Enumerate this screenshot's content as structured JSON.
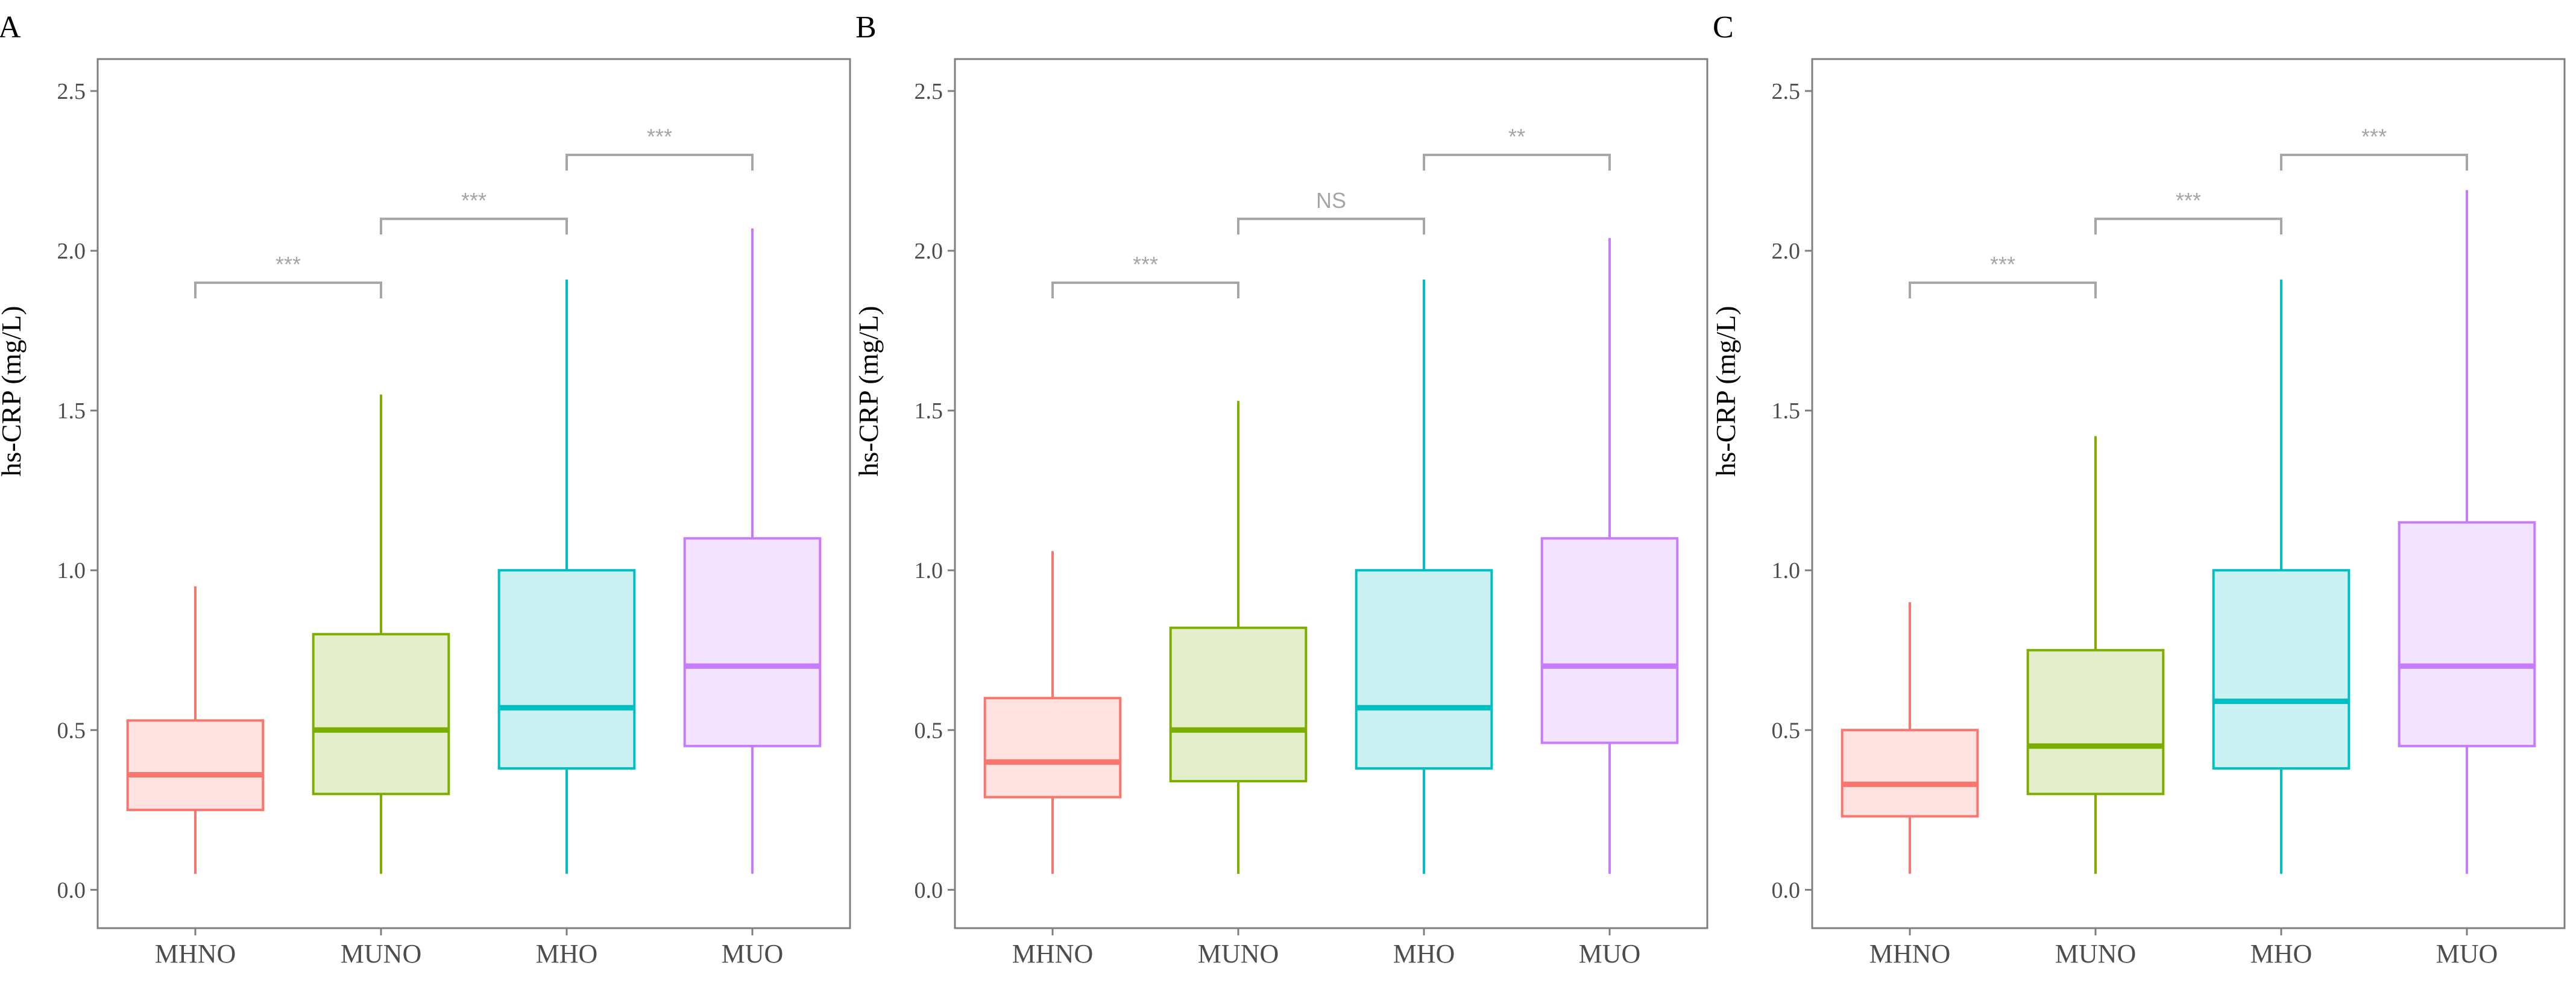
{
  "chart_data": [
    {
      "panel": "A",
      "type": "box",
      "ylabel": "hs-CRP (mg/L)",
      "ylim": [
        -0.12,
        2.6
      ],
      "yticks": [
        "0.0",
        "0.5",
        "1.0",
        "1.5",
        "2.0",
        "2.5"
      ],
      "ytick_values": [
        0,
        0.5,
        1.0,
        1.5,
        2.0,
        2.5
      ],
      "categories": [
        "MHNO",
        "MUNO",
        "MHO",
        "MUO"
      ],
      "boxes": [
        {
          "min": 0.05,
          "q1": 0.25,
          "median": 0.36,
          "q3": 0.53,
          "max": 0.95
        },
        {
          "min": 0.05,
          "q1": 0.3,
          "median": 0.5,
          "q3": 0.8,
          "max": 1.55
        },
        {
          "min": 0.05,
          "q1": 0.38,
          "median": 0.57,
          "q3": 1.0,
          "max": 1.91
        },
        {
          "min": 0.05,
          "q1": 0.45,
          "median": 0.7,
          "q3": 1.1,
          "max": 2.07
        }
      ],
      "comparisons": [
        {
          "from": 0,
          "to": 1,
          "y": 1.9,
          "label": "***"
        },
        {
          "from": 1,
          "to": 2,
          "y": 2.1,
          "label": "***"
        },
        {
          "from": 2,
          "to": 3,
          "y": 2.3,
          "label": "***"
        }
      ]
    },
    {
      "panel": "B",
      "type": "box",
      "ylabel": "hs-CRP (mg/L)",
      "ylim": [
        -0.12,
        2.6
      ],
      "yticks": [
        "0.0",
        "0.5",
        "1.0",
        "1.5",
        "2.0",
        "2.5"
      ],
      "ytick_values": [
        0,
        0.5,
        1.0,
        1.5,
        2.0,
        2.5
      ],
      "categories": [
        "MHNO",
        "MUNO",
        "MHO",
        "MUO"
      ],
      "boxes": [
        {
          "min": 0.05,
          "q1": 0.29,
          "median": 0.4,
          "q3": 0.6,
          "max": 1.06
        },
        {
          "min": 0.05,
          "q1": 0.34,
          "median": 0.5,
          "q3": 0.82,
          "max": 1.53
        },
        {
          "min": 0.05,
          "q1": 0.38,
          "median": 0.57,
          "q3": 1.0,
          "max": 1.91
        },
        {
          "min": 0.05,
          "q1": 0.46,
          "median": 0.7,
          "q3": 1.1,
          "max": 2.04
        }
      ],
      "comparisons": [
        {
          "from": 0,
          "to": 1,
          "y": 1.9,
          "label": "***"
        },
        {
          "from": 1,
          "to": 2,
          "y": 2.1,
          "label": "NS"
        },
        {
          "from": 2,
          "to": 3,
          "y": 2.3,
          "label": "**"
        }
      ]
    },
    {
      "panel": "C",
      "type": "box",
      "ylabel": "hs-CRP (mg/L)",
      "ylim": [
        -0.12,
        2.6
      ],
      "yticks": [
        "0.0",
        "0.5",
        "1.0",
        "1.5",
        "2.0",
        "2.5"
      ],
      "ytick_values": [
        0,
        0.5,
        1.0,
        1.5,
        2.0,
        2.5
      ],
      "categories": [
        "MHNO",
        "MUNO",
        "MHO",
        "MUO"
      ],
      "boxes": [
        {
          "min": 0.05,
          "q1": 0.23,
          "median": 0.33,
          "q3": 0.5,
          "max": 0.9
        },
        {
          "min": 0.05,
          "q1": 0.3,
          "median": 0.45,
          "q3": 0.75,
          "max": 1.42
        },
        {
          "min": 0.05,
          "q1": 0.38,
          "median": 0.59,
          "q3": 1.0,
          "max": 1.91
        },
        {
          "min": 0.05,
          "q1": 0.45,
          "median": 0.7,
          "q3": 1.15,
          "max": 2.19
        }
      ],
      "comparisons": [
        {
          "from": 0,
          "to": 1,
          "y": 1.9,
          "label": "***"
        },
        {
          "from": 1,
          "to": 2,
          "y": 2.1,
          "label": "***"
        },
        {
          "from": 2,
          "to": 3,
          "y": 2.3,
          "label": "***"
        }
      ]
    }
  ],
  "colors": {
    "stroke": [
      "#f8766d",
      "#7cae00",
      "#00bfc4",
      "#c77cff"
    ],
    "fill": [
      "#fde2e0",
      "#e5eecb",
      "#cbf1f2",
      "#f2e3ff"
    ],
    "frame": "#7f7f7f",
    "bracket": "#a6a6a6"
  }
}
